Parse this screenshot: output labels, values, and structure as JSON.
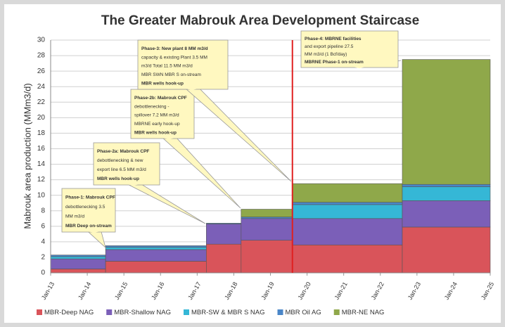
{
  "chart_data": {
    "type": "step_stacked_area",
    "title": "The Greater Mabrouk Area Development Staircase",
    "y_label": "Mabrouk area production  (MMm3/d)",
    "x": [
      2013,
      2014.5,
      2017.25,
      2018.2,
      2019.6,
      2022.6
    ],
    "xlim": [
      2013,
      2025
    ],
    "xticks": [
      {
        "value": 2013,
        "label": "Jan-13"
      },
      {
        "value": 2014,
        "label": "Jan-14"
      },
      {
        "value": 2015,
        "label": "Jan-15"
      },
      {
        "value": 2016,
        "label": "Jan-16"
      },
      {
        "value": 2017,
        "label": "Jan-17"
      },
      {
        "value": 2018,
        "label": "Jan-18"
      },
      {
        "value": 2019,
        "label": "Jan-19"
      },
      {
        "value": 2020,
        "label": "Jan-20"
      },
      {
        "value": 2021,
        "label": "Jan-21"
      },
      {
        "value": 2022,
        "label": "Jan-22"
      },
      {
        "value": 2023,
        "label": "Jan-23"
      },
      {
        "value": 2024,
        "label": "Jan-24"
      },
      {
        "value": 2025,
        "label": "Jan-25"
      }
    ],
    "ylim": [
      0,
      30
    ],
    "yticks": [
      0,
      2,
      4,
      6,
      8,
      10,
      12,
      14,
      16,
      18,
      20,
      22,
      24,
      26,
      28,
      30
    ],
    "grid": true,
    "series": [
      {
        "name": "MBR-Deep NAG",
        "color": "#d9545a",
        "values": [
          0.5,
          1.5,
          3.7,
          4.2,
          3.6,
          5.9
        ]
      },
      {
        "name": "MBR-Shallow NAG",
        "color": "#7b5fb8",
        "values": [
          1.3,
          1.5,
          2.6,
          2.8,
          3.4,
          3.4
        ]
      },
      {
        "name": "MBR-SW & MBR S NAG",
        "color": "#35b7d6",
        "values": [
          0.3,
          0.3,
          0,
          0,
          1.8,
          1.8
        ]
      },
      {
        "name": "MBR Oil AG",
        "color": "#4a86c8",
        "values": [
          0.2,
          0.2,
          0.1,
          0.2,
          0.3,
          0.3
        ]
      },
      {
        "name": "MBR-NE NAG",
        "color": "#8fa84a",
        "values": [
          0,
          0,
          0,
          1.0,
          2.4,
          16.1
        ]
      }
    ],
    "vline": {
      "x": 2019.6,
      "color": "#e02020"
    },
    "annotations": [
      [
        "Phase-1: Mabrouk CPF",
        "debottlenecking 3.5",
        "MM m3/d",
        "MBR Deep on-stream"
      ],
      [
        "Phase-2a: Mabrouk CPF",
        "debottlenecking & new",
        "export line 6.5 MM m3/d",
        "MBR wells hook-up"
      ],
      [
        "Phase-2b: Mabrouk CPF",
        "debottlenecking -",
        "spillover 7.2 MM m3/d",
        "MBRNE early hook-up",
        "MBR wells hook-up"
      ],
      [
        "Phase-3: New plant 8 MM m3/d",
        "capacity & existing Plant 3.5 MM",
        "m3/d Total 11.5 MM m3/d",
        "MBR SWN MBR S on-stream",
        "MBR wells hook-up"
      ],
      [
        "Phase-4: MBRNE facilities",
        "and export pipeline 27.5",
        "MM m3/d (1 Bcf/day)",
        "MBRNE Phase-1 on-stream"
      ]
    ]
  }
}
